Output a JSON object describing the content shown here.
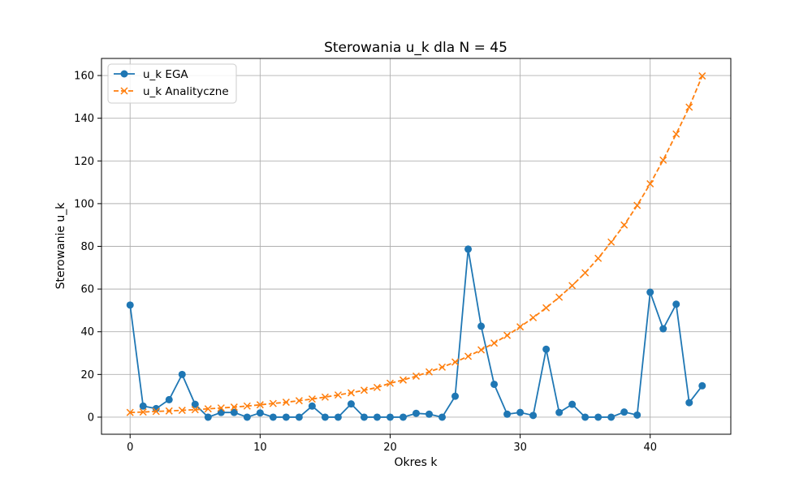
{
  "chart_data": {
    "type": "line",
    "title": "Sterowania u_k dla N = 45",
    "xlabel": "Okres k",
    "ylabel": "Sterowanie u_k",
    "xlim": [
      -2.2,
      46.2
    ],
    "ylim": [
      -8,
      168
    ],
    "xticks": [
      0,
      10,
      20,
      30,
      40
    ],
    "yticks": [
      0,
      20,
      40,
      60,
      80,
      100,
      120,
      140,
      160
    ],
    "grid": true,
    "legend_position": "top-left",
    "x": [
      0,
      1,
      2,
      3,
      4,
      5,
      6,
      7,
      8,
      9,
      10,
      11,
      12,
      13,
      14,
      15,
      16,
      17,
      18,
      19,
      20,
      21,
      22,
      23,
      24,
      25,
      26,
      27,
      28,
      29,
      30,
      31,
      32,
      33,
      34,
      35,
      36,
      37,
      38,
      39,
      40,
      41,
      42,
      43,
      44
    ],
    "series": [
      {
        "name": "u_k EGA",
        "color": "#1f77b4",
        "line_style": "solid",
        "marker": "circle",
        "values": [
          52.5,
          5.2,
          4.0,
          8.2,
          20.0,
          6.0,
          0.0,
          2.2,
          2.2,
          0.0,
          2.0,
          0.0,
          0.0,
          0.0,
          5.2,
          0.0,
          0.0,
          6.2,
          0.0,
          0.0,
          0.0,
          0.0,
          1.8,
          1.4,
          0.0,
          9.8,
          78.7,
          42.6,
          15.4,
          1.4,
          2.2,
          0.8,
          31.8,
          2.2,
          6.0,
          0.0,
          0.0,
          0.0,
          2.4,
          1.0,
          58.5,
          41.4,
          52.9,
          6.8,
          14.7
        ]
      },
      {
        "name": "u_k Analityczne",
        "color": "#ff7f0e",
        "line_style": "dashed",
        "marker": "x",
        "values": [
          2.2,
          2.4,
          2.7,
          2.9,
          3.2,
          3.5,
          3.9,
          4.3,
          4.7,
          5.2,
          5.8,
          6.4,
          7.0,
          7.7,
          8.5,
          9.4,
          10.4,
          11.4,
          12.6,
          13.9,
          15.9,
          17.4,
          19.2,
          21.2,
          23.4,
          25.8,
          28.5,
          31.5,
          34.7,
          38.3,
          42.3,
          46.6,
          51.2,
          56.2,
          61.6,
          67.6,
          74.4,
          82.0,
          90.0,
          99.2,
          109.3,
          120.4,
          132.6,
          145.2,
          159.8
        ]
      }
    ]
  }
}
